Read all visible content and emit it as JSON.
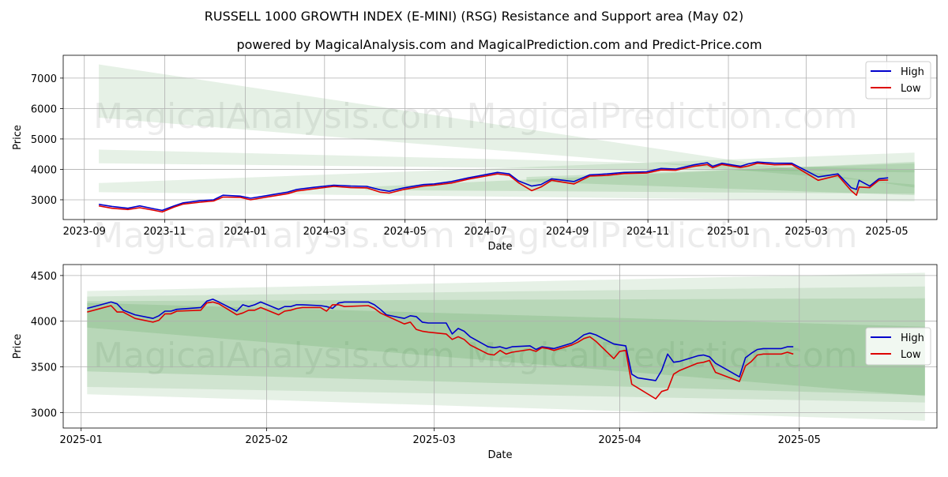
{
  "title": "RUSSELL 1000 GROWTH INDEX (E-MINI) (RSG) Resistance and Support area (May 02)",
  "subtitle": "powered by MagicalAnalysis.com and MagicalPrediction.com and Predict-Price.com",
  "watermarks": [
    "MagicalAnalysis.com",
    "MagicalPrediction.com"
  ],
  "colors": {
    "high": "#0000cc",
    "low": "#dd0000",
    "band": "#2e8b2e",
    "grid": "#b0b0b0"
  },
  "chart_data": [
    {
      "type": "line",
      "xlabel": "Date",
      "ylabel": "Price",
      "xlim": [
        "2023-08-16",
        "2025-06-08"
      ],
      "ylim": [
        2350,
        7750
      ],
      "xticks": [
        {
          "date": "2023-09-01",
          "label": "2023-09"
        },
        {
          "date": "2023-11-01",
          "label": "2023-11"
        },
        {
          "date": "2024-01-01",
          "label": "2024-01"
        },
        {
          "date": "2024-03-01",
          "label": "2024-03"
        },
        {
          "date": "2024-05-01",
          "label": "2024-05"
        },
        {
          "date": "2024-07-01",
          "label": "2024-07"
        },
        {
          "date": "2024-09-01",
          "label": "2024-09"
        },
        {
          "date": "2024-11-01",
          "label": "2024-11"
        },
        {
          "date": "2025-01-01",
          "label": "2025-01"
        },
        {
          "date": "2025-03-01",
          "label": "2025-03"
        },
        {
          "date": "2025-05-01",
          "label": "2025-05"
        }
      ],
      "yticks": [
        3000,
        4000,
        5000,
        6000,
        7000
      ],
      "legend": "top-right",
      "grid": true,
      "bands": [
        {
          "x0": "2023-09-12",
          "x1": "2025-05-22",
          "top": [
            7450,
            3400
          ],
          "bottom": [
            5700,
            3500
          ],
          "opacity": 0.12
        },
        {
          "x0": "2023-09-12",
          "x1": "2025-05-22",
          "top": [
            4650,
            4000
          ],
          "bottom": [
            4200,
            3900
          ],
          "opacity": 0.12
        },
        {
          "x0": "2023-09-12",
          "x1": "2025-05-22",
          "top": [
            3550,
            4550
          ],
          "bottom": [
            3250,
            2950
          ],
          "opacity": 0.12
        },
        {
          "x0": "2024-04-01",
          "x1": "2025-05-22",
          "top": [
            3420,
            4250
          ],
          "bottom": [
            3320,
            3200
          ],
          "opacity": 0.15
        },
        {
          "x0": "2024-08-01",
          "x1": "2025-05-22",
          "top": [
            3750,
            4200
          ],
          "bottom": [
            3600,
            3150
          ],
          "opacity": 0.15
        }
      ],
      "series": [
        {
          "name": "High",
          "key": "high",
          "x": [
            "2023-09-12",
            "2023-09-22",
            "2023-10-04",
            "2023-10-13",
            "2023-10-24",
            "2023-10-30",
            "2023-11-08",
            "2023-11-15",
            "2023-11-28",
            "2023-12-08",
            "2023-12-15",
            "2023-12-28",
            "2024-01-05",
            "2024-01-19",
            "2024-02-02",
            "2024-02-09",
            "2024-02-22",
            "2024-03-08",
            "2024-03-21",
            "2024-04-02",
            "2024-04-12",
            "2024-04-19",
            "2024-04-30",
            "2024-05-15",
            "2024-05-23",
            "2024-06-05",
            "2024-06-18",
            "2024-07-10",
            "2024-07-19",
            "2024-07-26",
            "2024-08-05",
            "2024-08-12",
            "2024-08-20",
            "2024-09-06",
            "2024-09-18",
            "2024-10-01",
            "2024-10-14",
            "2024-10-31",
            "2024-11-11",
            "2024-11-22",
            "2024-12-06",
            "2024-12-16",
            "2024-12-20",
            "2024-12-27",
            "2025-01-10",
            "2025-01-16",
            "2025-01-23",
            "2025-02-05",
            "2025-02-18",
            "2025-03-10",
            "2025-03-25",
            "2025-04-04",
            "2025-04-08",
            "2025-04-10",
            "2025-04-18",
            "2025-04-25",
            "2025-05-02"
          ],
          "y": [
            2850,
            2780,
            2720,
            2800,
            2700,
            2650,
            2800,
            2900,
            2970,
            3000,
            3150,
            3120,
            3050,
            3150,
            3250,
            3340,
            3410,
            3480,
            3450,
            3440,
            3330,
            3280,
            3390,
            3500,
            3520,
            3600,
            3720,
            3900,
            3850,
            3620,
            3450,
            3500,
            3690,
            3600,
            3820,
            3850,
            3900,
            3920,
            4030,
            4010,
            4150,
            4220,
            4100,
            4200,
            4100,
            4180,
            4240,
            4200,
            4200,
            3750,
            3850,
            3400,
            3340,
            3640,
            3450,
            3690,
            3720
          ]
        },
        {
          "name": "Low",
          "key": "low",
          "x": [
            "2023-09-12",
            "2023-09-22",
            "2023-10-04",
            "2023-10-13",
            "2023-10-24",
            "2023-10-30",
            "2023-11-08",
            "2023-11-15",
            "2023-11-28",
            "2023-12-08",
            "2023-12-15",
            "2023-12-28",
            "2024-01-05",
            "2024-01-19",
            "2024-02-02",
            "2024-02-09",
            "2024-02-22",
            "2024-03-08",
            "2024-03-21",
            "2024-04-02",
            "2024-04-12",
            "2024-04-19",
            "2024-04-30",
            "2024-05-15",
            "2024-05-23",
            "2024-06-05",
            "2024-06-18",
            "2024-07-10",
            "2024-07-19",
            "2024-07-26",
            "2024-08-05",
            "2024-08-12",
            "2024-08-20",
            "2024-09-06",
            "2024-09-18",
            "2024-10-01",
            "2024-10-14",
            "2024-10-31",
            "2024-11-11",
            "2024-11-22",
            "2024-12-06",
            "2024-12-16",
            "2024-12-20",
            "2024-12-27",
            "2025-01-10",
            "2025-01-16",
            "2025-01-23",
            "2025-02-05",
            "2025-02-18",
            "2025-03-10",
            "2025-03-25",
            "2025-04-04",
            "2025-04-08",
            "2025-04-10",
            "2025-04-18",
            "2025-04-25",
            "2025-05-02"
          ],
          "y": [
            2800,
            2720,
            2680,
            2740,
            2650,
            2600,
            2760,
            2860,
            2920,
            2960,
            3090,
            3080,
            3000,
            3100,
            3200,
            3290,
            3360,
            3440,
            3400,
            3390,
            3250,
            3220,
            3340,
            3450,
            3480,
            3550,
            3680,
            3850,
            3800,
            3560,
            3300,
            3420,
            3640,
            3520,
            3780,
            3800,
            3860,
            3880,
            3980,
            3970,
            4100,
            4160,
            4050,
            4160,
            4060,
            4110,
            4200,
            4150,
            4160,
            3640,
            3800,
            3300,
            3150,
            3420,
            3400,
            3640,
            3650
          ]
        }
      ]
    },
    {
      "type": "line",
      "xlabel": "Date",
      "ylabel": "Price",
      "xlim": [
        "2024-12-29",
        "2025-05-24"
      ],
      "ylim": [
        2830,
        4620
      ],
      "xticks": [
        {
          "date": "2025-01-01",
          "label": "2025-01"
        },
        {
          "date": "2025-02-01",
          "label": "2025-02"
        },
        {
          "date": "2025-03-01",
          "label": "2025-03"
        },
        {
          "date": "2025-04-01",
          "label": "2025-04"
        },
        {
          "date": "2025-05-01",
          "label": "2025-05"
        }
      ],
      "yticks": [
        3000,
        3500,
        4000,
        4500
      ],
      "legend": "center-right",
      "grid": true,
      "bands": [
        {
          "x0": "2025-01-02",
          "x1": "2025-05-22",
          "top": [
            4330,
            4530
          ],
          "bottom": [
            3200,
            2910
          ],
          "opacity": 0.12
        },
        {
          "x0": "2025-01-02",
          "x1": "2025-05-22",
          "top": [
            4270,
            4380
          ],
          "bottom": [
            3280,
            3110
          ],
          "opacity": 0.12
        },
        {
          "x0": "2025-01-02",
          "x1": "2025-05-22",
          "top": [
            4220,
            4250
          ],
          "bottom": [
            3450,
            3190
          ],
          "opacity": 0.14
        },
        {
          "x0": "2025-01-02",
          "x1": "2025-05-22",
          "top": [
            4200,
            3940
          ],
          "bottom": [
            3930,
            3180
          ],
          "opacity": 0.14
        }
      ],
      "series": [
        {
          "name": "High",
          "key": "high",
          "x": [
            "2025-01-02",
            "2025-01-06",
            "2025-01-07",
            "2025-01-08",
            "2025-01-10",
            "2025-01-13",
            "2025-01-14",
            "2025-01-15",
            "2025-01-16",
            "2025-01-17",
            "2025-01-21",
            "2025-01-22",
            "2025-01-23",
            "2025-01-24",
            "2025-01-27",
            "2025-01-28",
            "2025-01-29",
            "2025-01-30",
            "2025-01-31",
            "2025-02-03",
            "2025-02-04",
            "2025-02-05",
            "2025-02-06",
            "2025-02-07",
            "2025-02-10",
            "2025-02-11",
            "2025-02-12",
            "2025-02-13",
            "2025-02-14",
            "2025-02-18",
            "2025-02-19",
            "2025-02-20",
            "2025-02-21",
            "2025-02-24",
            "2025-02-25",
            "2025-02-26",
            "2025-02-27",
            "2025-02-28",
            "2025-03-03",
            "2025-03-04",
            "2025-03-05",
            "2025-03-06",
            "2025-03-07",
            "2025-03-10",
            "2025-03-11",
            "2025-03-12",
            "2025-03-13",
            "2025-03-14",
            "2025-03-17",
            "2025-03-18",
            "2025-03-19",
            "2025-03-20",
            "2025-03-21",
            "2025-03-24",
            "2025-03-25",
            "2025-03-26",
            "2025-03-27",
            "2025-03-28",
            "2025-03-31",
            "2025-04-01",
            "2025-04-02",
            "2025-04-03",
            "2025-04-04",
            "2025-04-07",
            "2025-04-08",
            "2025-04-09",
            "2025-04-10",
            "2025-04-11",
            "2025-04-14",
            "2025-04-15",
            "2025-04-16",
            "2025-04-17",
            "2025-04-21",
            "2025-04-22",
            "2025-04-23",
            "2025-04-24",
            "2025-04-25",
            "2025-04-28",
            "2025-04-29",
            "2025-04-30"
          ],
          "y": [
            4140,
            4210,
            4190,
            4120,
            4070,
            4030,
            4060,
            4110,
            4110,
            4130,
            4150,
            4220,
            4240,
            4210,
            4110,
            4180,
            4160,
            4180,
            4210,
            4130,
            4160,
            4160,
            4180,
            4180,
            4170,
            4160,
            4140,
            4200,
            4210,
            4210,
            4180,
            4130,
            4070,
            4030,
            4060,
            4050,
            3990,
            3980,
            3980,
            3860,
            3920,
            3890,
            3830,
            3720,
            3710,
            3720,
            3700,
            3720,
            3730,
            3690,
            3720,
            3710,
            3700,
            3760,
            3800,
            3850,
            3870,
            3850,
            3750,
            3740,
            3730,
            3420,
            3380,
            3350,
            3460,
            3640,
            3550,
            3560,
            3620,
            3630,
            3610,
            3540,
            3390,
            3600,
            3650,
            3690,
            3700,
            3700,
            3720,
            3720
          ]
        },
        {
          "name": "Low",
          "key": "low",
          "x": [
            "2025-01-02",
            "2025-01-06",
            "2025-01-07",
            "2025-01-08",
            "2025-01-10",
            "2025-01-13",
            "2025-01-14",
            "2025-01-15",
            "2025-01-16",
            "2025-01-17",
            "2025-01-21",
            "2025-01-22",
            "2025-01-23",
            "2025-01-24",
            "2025-01-27",
            "2025-01-28",
            "2025-01-29",
            "2025-01-30",
            "2025-01-31",
            "2025-02-03",
            "2025-02-04",
            "2025-02-05",
            "2025-02-06",
            "2025-02-07",
            "2025-02-10",
            "2025-02-11",
            "2025-02-12",
            "2025-02-13",
            "2025-02-14",
            "2025-02-18",
            "2025-02-19",
            "2025-02-20",
            "2025-02-21",
            "2025-02-24",
            "2025-02-25",
            "2025-02-26",
            "2025-02-27",
            "2025-02-28",
            "2025-03-03",
            "2025-03-04",
            "2025-03-05",
            "2025-03-06",
            "2025-03-07",
            "2025-03-10",
            "2025-03-11",
            "2025-03-12",
            "2025-03-13",
            "2025-03-14",
            "2025-03-17",
            "2025-03-18",
            "2025-03-19",
            "2025-03-20",
            "2025-03-21",
            "2025-03-24",
            "2025-03-25",
            "2025-03-26",
            "2025-03-27",
            "2025-03-28",
            "2025-03-31",
            "2025-04-01",
            "2025-04-02",
            "2025-04-03",
            "2025-04-04",
            "2025-04-07",
            "2025-04-08",
            "2025-04-09",
            "2025-04-10",
            "2025-04-11",
            "2025-04-14",
            "2025-04-15",
            "2025-04-16",
            "2025-04-17",
            "2025-04-21",
            "2025-04-22",
            "2025-04-23",
            "2025-04-24",
            "2025-04-25",
            "2025-04-28",
            "2025-04-29",
            "2025-04-30"
          ],
          "y": [
            4100,
            4170,
            4100,
            4100,
            4030,
            3990,
            4010,
            4080,
            4080,
            4110,
            4120,
            4200,
            4210,
            4190,
            4070,
            4090,
            4120,
            4120,
            4150,
            4070,
            4110,
            4120,
            4140,
            4150,
            4150,
            4110,
            4180,
            4180,
            4160,
            4170,
            4140,
            4090,
            4060,
            3970,
            3990,
            3910,
            3890,
            3880,
            3860,
            3800,
            3830,
            3800,
            3740,
            3640,
            3630,
            3680,
            3640,
            3660,
            3690,
            3670,
            3710,
            3700,
            3680,
            3740,
            3770,
            3810,
            3830,
            3780,
            3590,
            3670,
            3680,
            3310,
            3270,
            3150,
            3230,
            3250,
            3420,
            3460,
            3540,
            3550,
            3570,
            3440,
            3340,
            3510,
            3560,
            3630,
            3640,
            3640,
            3660,
            3640
          ]
        }
      ]
    }
  ]
}
